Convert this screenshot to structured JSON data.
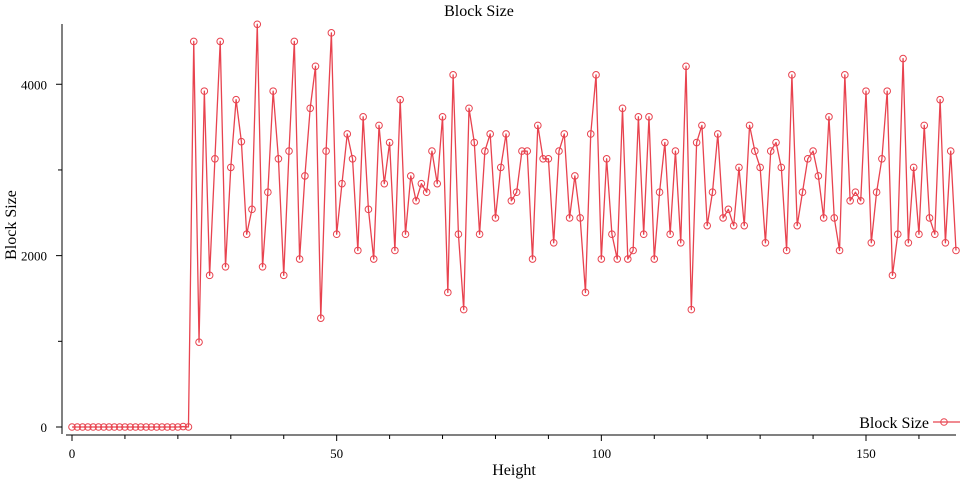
{
  "chart_data": {
    "type": "line",
    "title": "Block Size",
    "xlabel": "Height",
    "ylabel": "Block Size",
    "xlim": [
      0,
      167
    ],
    "ylim": [
      0,
      4750
    ],
    "x_ticks": [
      0,
      50,
      100,
      150
    ],
    "y_ticks": [
      0,
      2000,
      4000
    ],
    "grid": false,
    "legend": "bottom-right",
    "series": [
      {
        "name": "Block Size",
        "color": "#e8434f",
        "marker": "open-circle",
        "values": [
          0,
          0,
          0,
          0,
          0,
          0,
          0,
          0,
          0,
          0,
          0,
          0,
          0,
          0,
          0,
          0,
          0,
          0,
          0,
          0,
          0,
          5,
          0,
          4500,
          990,
          3920,
          1770,
          3130,
          4500,
          1870,
          3030,
          3820,
          3330,
          2250,
          2540,
          4700,
          1870,
          2740,
          3920,
          3130,
          1770,
          3220,
          4500,
          1960,
          2930,
          3720,
          4210,
          1270,
          3220,
          4600,
          2250,
          2840,
          3420,
          3130,
          2060,
          3620,
          2540,
          1960,
          3520,
          2840,
          3320,
          2060,
          3820,
          2250,
          2930,
          2640,
          2840,
          2740,
          3220,
          2840,
          3620,
          1570,
          4110,
          2250,
          1370,
          3720,
          3320,
          2250,
          3220,
          3420,
          2440,
          3030,
          3420,
          2640,
          2740,
          3220,
          3220,
          1960,
          3520,
          3130,
          3130,
          2150,
          3220,
          3420,
          2440,
          2930,
          2440,
          1570,
          3420,
          4110,
          1960,
          3130,
          2250,
          1960,
          3720,
          1960,
          2060,
          3620,
          2250,
          3620,
          1960,
          2740,
          3320,
          2250,
          3220,
          2150,
          4210,
          1370,
          3320,
          3520,
          2350,
          2740,
          3420,
          2440,
          2540,
          2350,
          3030,
          2350,
          3520,
          3220,
          3030,
          2150,
          3220,
          3320,
          3030,
          2060,
          4110,
          2350,
          2740,
          3130,
          3220,
          2930,
          2440,
          3620,
          2440,
          2060,
          4110,
          2640,
          2740,
          2640,
          3920,
          2150,
          2740,
          3130,
          3920,
          1770,
          2250,
          4300,
          2150,
          3030,
          2250,
          3520,
          2440,
          2250,
          3820,
          2150,
          3220,
          2060
        ]
      }
    ]
  }
}
